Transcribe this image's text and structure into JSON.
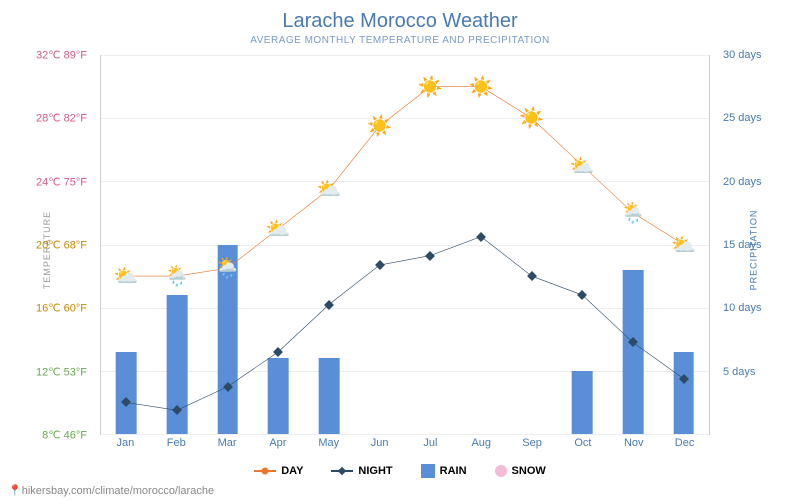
{
  "title": "Larache Morocco Weather",
  "subtitle": "AVERAGE MONTHLY TEMPERATURE AND PRECIPITATION",
  "left_axis_title": "TEMPERATURE",
  "right_axis_title": "PRECIPITATION",
  "source": "hikersbay.com/climate/morocco/larache",
  "legend": {
    "day": "DAY",
    "night": "NIGHT",
    "rain": "RAIN",
    "snow": "SNOW"
  },
  "chart": {
    "type": "combo-bar-line",
    "months": [
      "Jan",
      "Feb",
      "Mar",
      "Apr",
      "May",
      "Jun",
      "Jul",
      "Aug",
      "Sep",
      "Oct",
      "Nov",
      "Dec"
    ],
    "y_left": {
      "min_c": 8,
      "max_c": 32,
      "ticks": [
        {
          "c": 8,
          "label": "8℃ 46°F",
          "color": "#6aa84f"
        },
        {
          "c": 12,
          "label": "12℃ 53°F",
          "color": "#6aa84f"
        },
        {
          "c": 16,
          "label": "16℃ 60°F",
          "color": "#c28a00"
        },
        {
          "c": 20,
          "label": "20℃ 68°F",
          "color": "#c28a00"
        },
        {
          "c": 24,
          "label": "24℃ 75°F",
          "color": "#d45a8a"
        },
        {
          "c": 28,
          "label": "28℃ 82°F",
          "color": "#d45a8a"
        },
        {
          "c": 32,
          "label": "32℃ 89°F",
          "color": "#d45a8a"
        }
      ]
    },
    "y_right": {
      "min_days": 0,
      "max_days": 30,
      "ticks": [
        {
          "days": 5,
          "label": "5 days"
        },
        {
          "days": 10,
          "label": "10 days"
        },
        {
          "days": 15,
          "label": "15 days"
        },
        {
          "days": 20,
          "label": "20 days"
        },
        {
          "days": 25,
          "label": "25 days"
        },
        {
          "days": 30,
          "label": "30 days"
        }
      ]
    },
    "day_temps_c": [
      18,
      18,
      18.5,
      21,
      23.5,
      27.5,
      30,
      30,
      28,
      25,
      22,
      20
    ],
    "night_temps_c": [
      10,
      9.5,
      11,
      13.2,
      16.2,
      18.7,
      19.3,
      20.5,
      18,
      16.8,
      13.8,
      11.5
    ],
    "rain_days": [
      6.5,
      11,
      15,
      6,
      6,
      0,
      0,
      0,
      0,
      5,
      13,
      6.5
    ],
    "weather_icons": [
      "partly",
      "rain",
      "rain",
      "partly",
      "partly",
      "sun",
      "sun",
      "sun",
      "sun",
      "partly",
      "rain",
      "partly"
    ],
    "colors": {
      "day_line": "#e8762c",
      "night_line": "#2d4a66",
      "rain_bar": "#5a8fd8",
      "snow": "#f4bcd4",
      "month_label": "#4a7ab0",
      "right_axis": "#4a7ab0",
      "gridline": "#eeeeee"
    },
    "bar_width_pct": 3.4,
    "background_color": "#ffffff"
  }
}
